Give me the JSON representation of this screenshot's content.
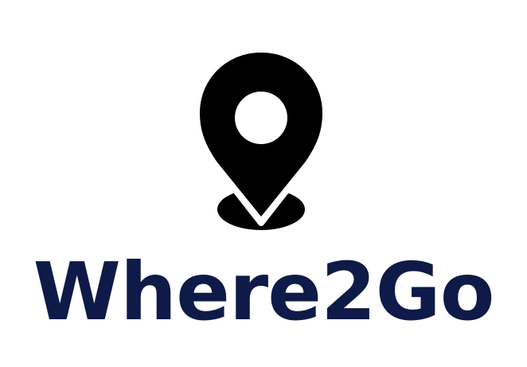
{
  "logo": {
    "wordmark": "Where2Go",
    "icon": "map-pin-icon",
    "colors": {
      "wordmark": "#0e1a48",
      "pin": "#000000",
      "background": "#ffffff"
    }
  }
}
